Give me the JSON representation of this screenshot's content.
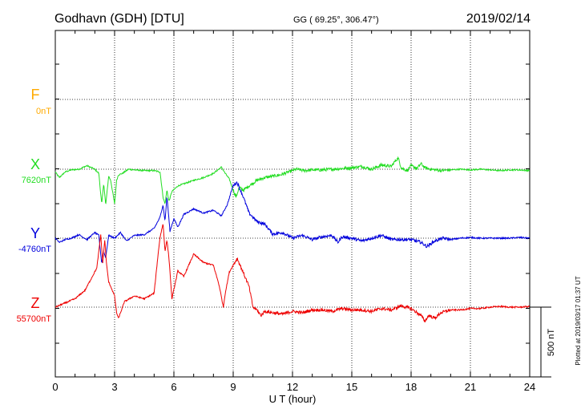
{
  "header": {
    "station": "Godhavn (GDH)  [DTU]",
    "coords": "GG ( 69.25°, 306.47°)",
    "date": "2019/02/14"
  },
  "plotted_note": "Plotted at 2019/03/17 01:37 UT",
  "scale_label": "500 nT",
  "colors": {
    "F": "#ffaa00",
    "X": "#22dd22",
    "Y": "#0000dd",
    "Z": "#ee0000"
  },
  "chart_data": {
    "type": "line",
    "title": "Godhavn (GDH)  [DTU]",
    "xlabel": "U T (hour)",
    "xlim": [
      0,
      24
    ],
    "xticks": [
      "0",
      "3",
      "6",
      "9",
      "12",
      "15",
      "18",
      "21",
      "24"
    ],
    "units_per_hour_series_scale_nT": 500,
    "series": [
      {
        "name": "F",
        "baseline_label": "0nT",
        "values": []
      },
      {
        "name": "X",
        "baseline_label": "7620nT",
        "x": [
          0,
          0.2,
          0.5,
          0.8,
          1.2,
          1.6,
          2.0,
          2.2,
          2.35,
          2.45,
          2.55,
          2.7,
          2.8,
          2.9,
          3.0,
          3.1,
          3.2,
          3.4,
          3.7,
          4.0,
          4.5,
          5.0,
          5.3,
          5.45,
          5.55,
          5.65,
          5.75,
          5.9,
          6.2,
          6.6,
          7.0,
          7.5,
          8.0,
          8.4,
          8.6,
          8.8,
          9.0,
          9.15,
          9.3,
          9.5,
          9.8,
          10.2,
          10.6,
          11.0,
          11.4,
          11.8,
          12.2,
          12.6,
          13.0,
          13.5,
          14.0,
          14.5,
          15.0,
          15.5,
          16.0,
          16.5,
          17.0,
          17.2,
          17.35,
          17.5,
          17.8,
          18.0,
          18.3,
          18.5,
          18.7,
          19.0,
          19.5,
          20.0,
          20.5,
          21.0,
          21.5,
          22.0,
          22.5,
          23.0,
          23.5,
          24.0
        ],
        "values": [
          -20,
          -60,
          -20,
          -5,
          0,
          25,
          0,
          -30,
          -250,
          -100,
          -260,
          -50,
          -80,
          -160,
          -250,
          -80,
          -40,
          -30,
          0,
          -5,
          -10,
          -10,
          -20,
          -200,
          -250,
          -150,
          -230,
          -160,
          -120,
          -100,
          -80,
          -60,
          -30,
          15,
          -30,
          -70,
          -150,
          -200,
          -130,
          -150,
          -120,
          -80,
          -60,
          -50,
          -40,
          -20,
          0,
          -10,
          -5,
          -5,
          0,
          5,
          10,
          20,
          0,
          30,
          20,
          60,
          80,
          10,
          -10,
          25,
          5,
          40,
          10,
          0,
          -10,
          -5,
          0,
          -5,
          0,
          -5,
          -10,
          -5,
          -5,
          -10
        ]
      },
      {
        "name": "Y",
        "baseline_label": "-4760nT",
        "x": [
          0,
          0.2,
          0.5,
          0.8,
          1.2,
          1.6,
          2.0,
          2.2,
          2.35,
          2.45,
          2.55,
          2.7,
          3.0,
          3.3,
          3.6,
          4.0,
          4.5,
          5.0,
          5.3,
          5.45,
          5.55,
          5.65,
          5.8,
          6.0,
          6.2,
          6.5,
          7.0,
          7.5,
          8.0,
          8.4,
          8.7,
          9.0,
          9.2,
          9.5,
          9.8,
          10.2,
          10.6,
          11.0,
          11.5,
          12.0,
          12.5,
          13.0,
          13.5,
          14.0,
          14.3,
          14.5,
          15.0,
          15.5,
          16.0,
          16.5,
          17.0,
          17.5,
          18.0,
          18.5,
          18.8,
          19.2,
          19.6,
          20.0,
          20.5,
          21.0,
          21.5,
          22.0,
          22.5,
          23.0,
          23.5,
          24.0
        ],
        "values": [
          0,
          -30,
          -10,
          0,
          25,
          -10,
          40,
          20,
          -180,
          -100,
          -140,
          20,
          0,
          40,
          -20,
          20,
          25,
          70,
          150,
          240,
          120,
          300,
          50,
          140,
          80,
          170,
          210,
          180,
          200,
          160,
          240,
          380,
          400,
          300,
          180,
          120,
          100,
          30,
          40,
          0,
          20,
          -10,
          10,
          20,
          -30,
          10,
          0,
          -20,
          0,
          20,
          -10,
          -10,
          -10,
          -30,
          -60,
          -20,
          0,
          -10,
          0,
          5,
          0,
          0,
          0,
          0,
          5,
          0
        ]
      },
      {
        "name": "Z",
        "baseline_label": "55700nT",
        "x": [
          0,
          0.5,
          1.0,
          1.5,
          1.8,
          2.1,
          2.3,
          2.4,
          2.5,
          2.6,
          2.7,
          2.8,
          3.0,
          3.1,
          3.2,
          3.5,
          4.0,
          4.5,
          5.0,
          5.2,
          5.3,
          5.45,
          5.55,
          5.65,
          5.75,
          5.9,
          6.2,
          6.5,
          7.0,
          7.5,
          8.0,
          8.3,
          8.5,
          8.6,
          8.8,
          9.0,
          9.2,
          9.5,
          9.8,
          10.0,
          10.2,
          10.4,
          10.6,
          11.0,
          11.5,
          12.0,
          12.5,
          13.0,
          13.5,
          14.0,
          14.5,
          15.0,
          15.5,
          16.0,
          16.5,
          17.0,
          17.5,
          18.0,
          18.3,
          18.5,
          18.7,
          18.9,
          19.2,
          19.5,
          20.0,
          20.5,
          21.0,
          21.5,
          22.0,
          22.5,
          23.0,
          23.5,
          24.0
        ],
        "values": [
          0,
          30,
          60,
          120,
          200,
          280,
          520,
          320,
          480,
          300,
          180,
          150,
          80,
          -40,
          -80,
          40,
          80,
          60,
          100,
          380,
          500,
          600,
          400,
          480,
          350,
          60,
          260,
          220,
          380,
          320,
          300,
          150,
          0,
          100,
          250,
          300,
          350,
          250,
          150,
          0,
          -20,
          -60,
          -30,
          -40,
          -50,
          -30,
          -40,
          -20,
          -20,
          -30,
          -10,
          -20,
          -20,
          -30,
          -10,
          -20,
          10,
          -10,
          -40,
          -60,
          -100,
          -60,
          -80,
          -40,
          -20,
          -20,
          -10,
          -10,
          0,
          5,
          0,
          0,
          5
        ]
      }
    ]
  }
}
